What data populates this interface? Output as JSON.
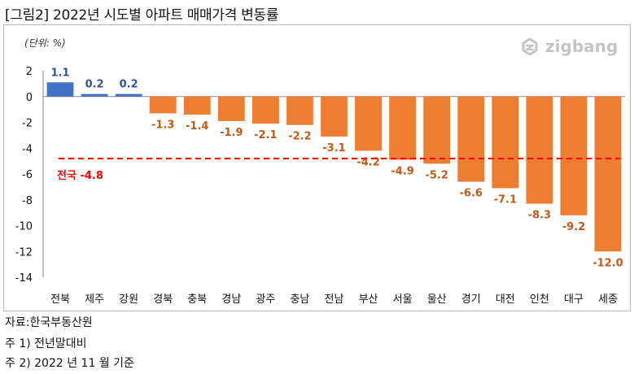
{
  "figure_title": "[그림2] 2022년 시도별 아파트 매매가격 변동률",
  "unit_label": "(단위: %)",
  "logo_text": "zigbang",
  "footnotes": {
    "source": "자료:한국부동산원",
    "note1": "주 1) 전년말대비",
    "note2": "주 2) 2022 년 11 월 기준"
  },
  "colors": {
    "positive": "#4472C4",
    "negative": "#ED7D31",
    "positive_label": "#2F5597",
    "negative_label": "#C65911",
    "reference": "#FF0000"
  },
  "chart_data": {
    "type": "bar",
    "title": "",
    "xlabel": "",
    "ylabel": "",
    "categories": [
      "전북",
      "제주",
      "강원",
      "경북",
      "충북",
      "경남",
      "광주",
      "충남",
      "전남",
      "부산",
      "서울",
      "울산",
      "경기",
      "대전",
      "인천",
      "대구",
      "세종"
    ],
    "values": [
      1.1,
      0.2,
      0.2,
      -1.3,
      -1.4,
      -1.9,
      -2.1,
      -2.2,
      -3.1,
      -4.2,
      -4.9,
      -5.2,
      -6.6,
      -7.1,
      -8.3,
      -9.2,
      -12.0
    ],
    "value_labels": [
      "1.1",
      "0.2",
      "0.2",
      "-1.3",
      "-1.4",
      "-1.9",
      "-2.1",
      "-2.2",
      "-3.1",
      "-4.2",
      "-4.9",
      "-5.2",
      "-6.6",
      "-7.1",
      "-8.3",
      "-9.2",
      "-12.0"
    ],
    "ylim": [
      -14,
      2
    ],
    "yticks": [
      2,
      0,
      -2,
      -4,
      -6,
      -8,
      -10,
      -12,
      -14
    ],
    "reference_line": {
      "label": "전국 -4.8",
      "value": -4.8,
      "style": "dashed"
    },
    "grid": false,
    "legend": "none"
  }
}
